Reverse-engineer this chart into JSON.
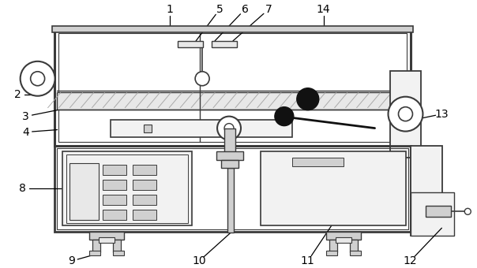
{
  "fig_width": 6.04,
  "fig_height": 3.4,
  "dpi": 100,
  "bg_color": "#ffffff",
  "lc": "#3a3a3a",
  "dc": "#111111",
  "gray1": "#e8e8e8",
  "gray2": "#d0d0d0",
  "gray3": "#f2f2f2",
  "gray_line": "#aaaaaa"
}
